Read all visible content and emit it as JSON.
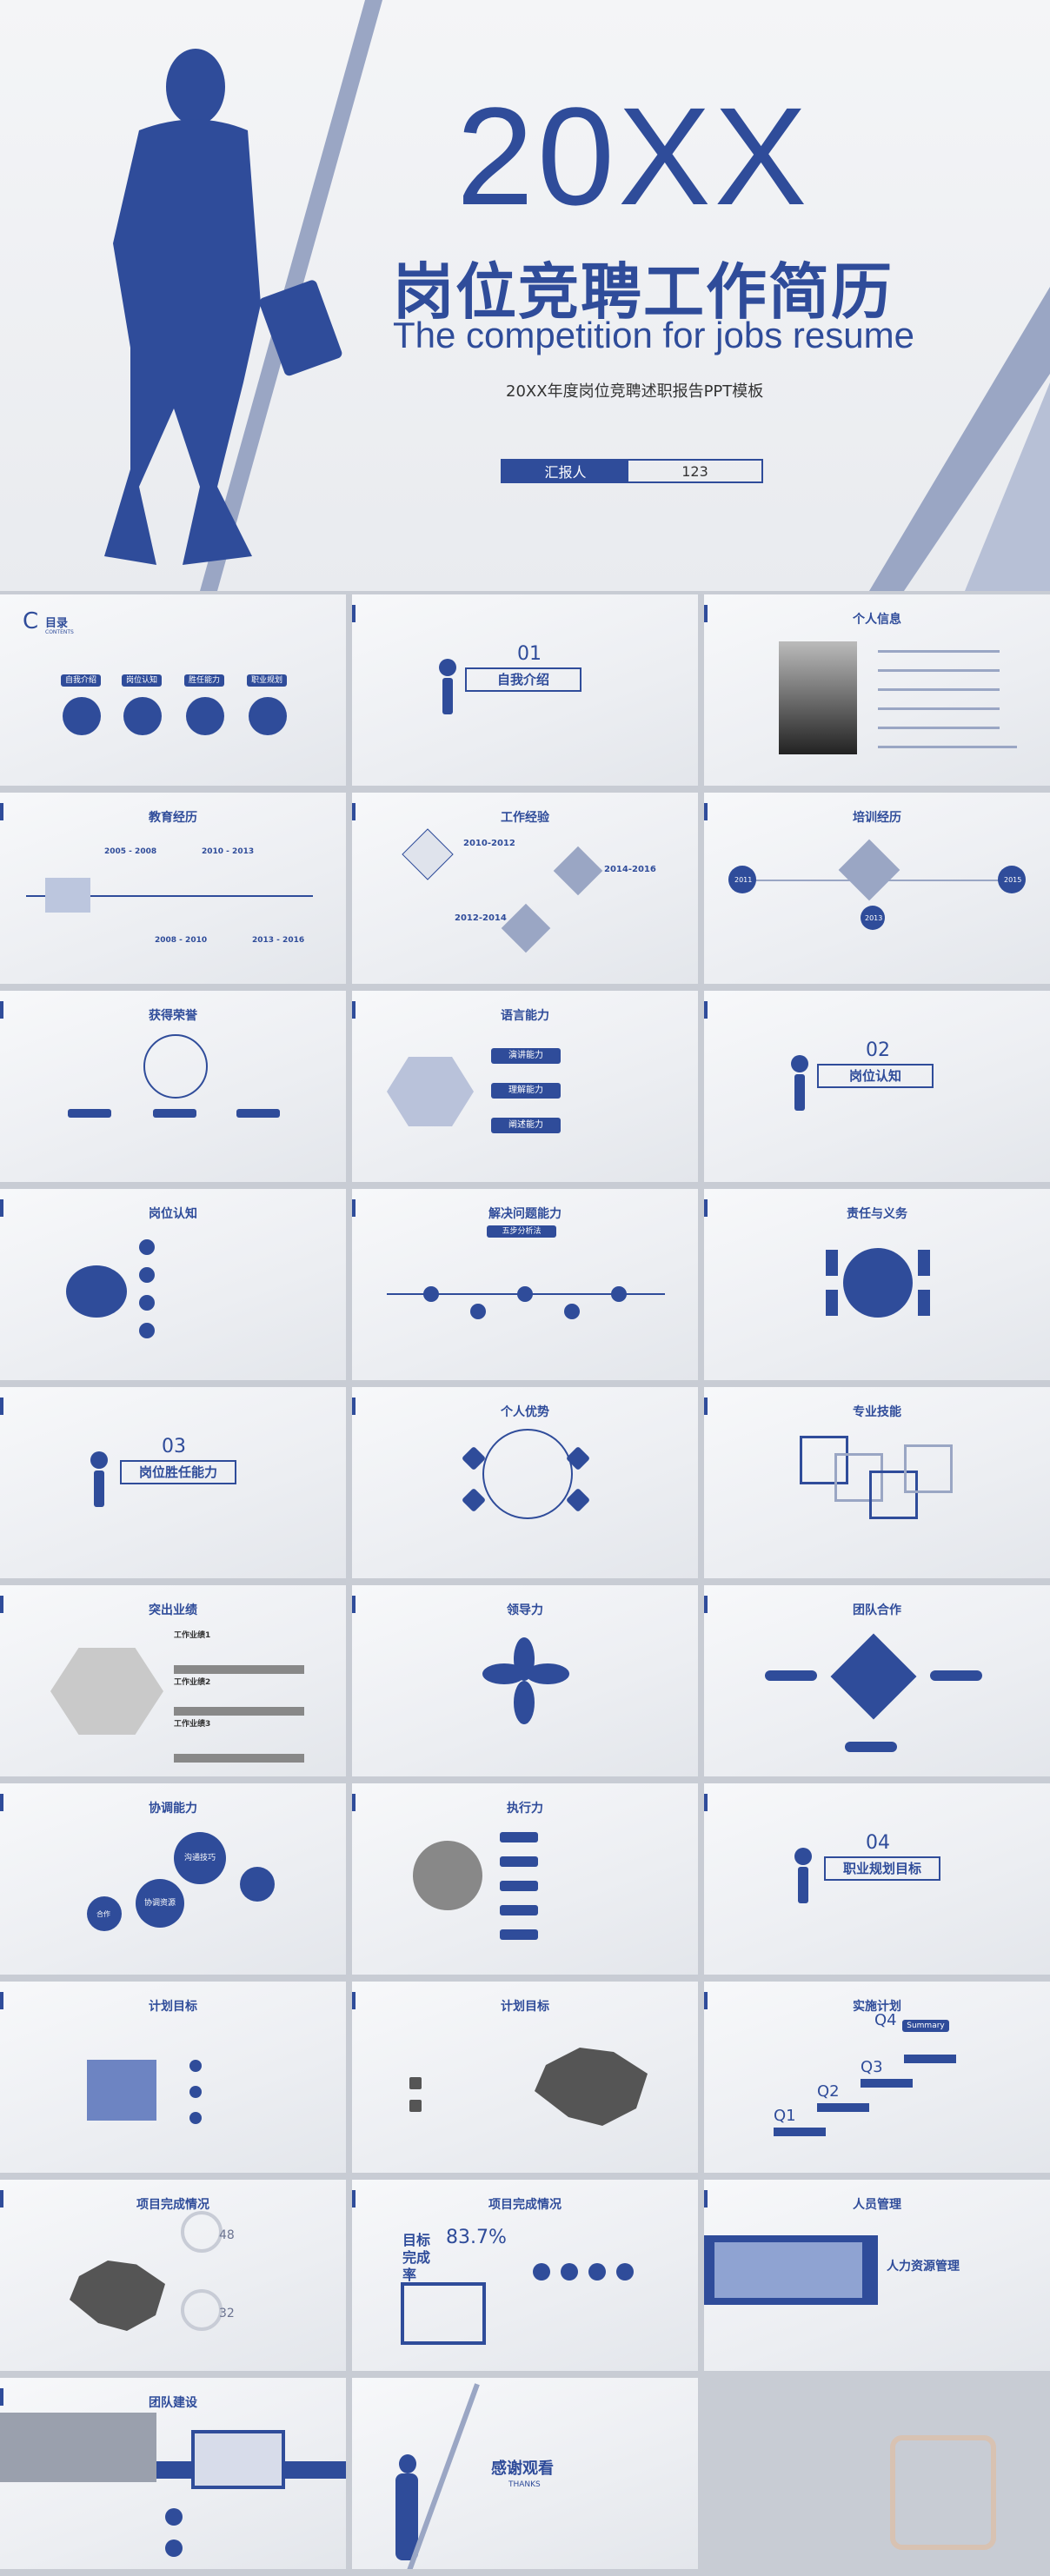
{
  "hero": {
    "year": "20XX",
    "title_cn": "岗位竞聘工作简历",
    "title_en": "The competition for jobs resume",
    "subtitle": "20XX年度岗位竞聘述职报告PPT模板",
    "reporter_label": "汇报人",
    "reporter_value": "123"
  },
  "slides": {
    "toc": {
      "title": "目录",
      "sub": "CONTENTS",
      "items": [
        "自我介绍",
        "岗位认知",
        "胜任能力",
        "职业规划"
      ]
    },
    "s01": {
      "num": "01",
      "title": "自我介绍"
    },
    "profile": {
      "title": "个人信息"
    },
    "education": {
      "title": "教育经历",
      "years": [
        "2005 - 2008",
        "2010 - 2013",
        "2008 - 2010",
        "2013 - 2016"
      ]
    },
    "work": {
      "title": "工作经验",
      "years": [
        "2010-2012",
        "2014-2016",
        "2012-2014"
      ]
    },
    "training": {
      "title": "培训经历",
      "years": [
        "2011",
        "2013",
        "2015"
      ]
    },
    "honors": {
      "title": "获得荣誉"
    },
    "language": {
      "title": "语言能力",
      "items": [
        "演讲能力",
        "理解能力",
        "阐述能力"
      ]
    },
    "s02": {
      "num": "02",
      "title": "岗位认知"
    },
    "jobknow": {
      "title": "岗位认知"
    },
    "solve": {
      "title": "解决问题能力",
      "badge": "五步分析法"
    },
    "duty": {
      "title": "责任与义务"
    },
    "s03": {
      "num": "03",
      "title": "岗位胜任能力"
    },
    "strength": {
      "title": "个人优势"
    },
    "skill": {
      "title": "专业技能"
    },
    "perf": {
      "title": "突出业绩",
      "items": [
        "工作业绩1",
        "工作业绩2",
        "工作业绩3"
      ]
    },
    "lead": {
      "title": "领导力"
    },
    "team": {
      "title": "团队合作"
    },
    "coord": {
      "title": "协调能力",
      "items": [
        "沟通技巧",
        "协调资源",
        "合作"
      ]
    },
    "exec": {
      "title": "执行力"
    },
    "s04": {
      "num": "04",
      "title": "职业规划目标"
    },
    "plan1": {
      "title": "计划目标"
    },
    "plan2": {
      "title": "计划目标"
    },
    "impl": {
      "title": "实施计划",
      "q": [
        "Q1",
        "Q2",
        "Q3",
        "Q4"
      ],
      "summary": "Summary"
    },
    "proj1": {
      "title": "项目完成情况",
      "p1": "48",
      "p2": "32"
    },
    "proj2": {
      "title": "项目完成情况",
      "label": "目标完成率",
      "value": "83.7%"
    },
    "hr": {
      "title": "人员管理",
      "sub": "人力资源管理"
    },
    "teambuild": {
      "title": "团队建设"
    },
    "thanks": {
      "title": "感谢观看",
      "sub": "THANKS"
    }
  },
  "colors": {
    "accent": "#2f4c9a",
    "light": "#9aa6c4"
  }
}
